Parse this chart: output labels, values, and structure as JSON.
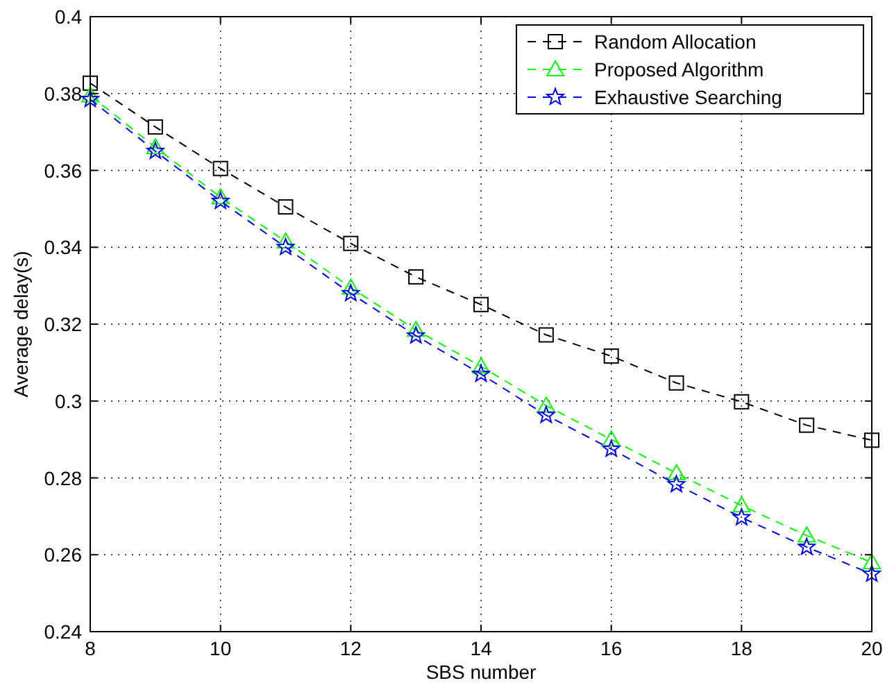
{
  "chart_data": {
    "type": "line",
    "xlabel": "SBS number",
    "ylabel": "Average delay(s)",
    "x": [
      8,
      9,
      10,
      11,
      12,
      13,
      14,
      15,
      16,
      17,
      18,
      19,
      20
    ],
    "series": [
      {
        "name": "Random Allocation",
        "color": "#000000",
        "marker": "square",
        "values": [
          0.3827,
          0.3713,
          0.3605,
          0.3505,
          0.341,
          0.3323,
          0.3251,
          0.3172,
          0.3117,
          0.3047,
          0.2998,
          0.2937,
          0.2898
        ]
      },
      {
        "name": "Proposed Algorithm",
        "color": "#00ff00",
        "marker": "triangle",
        "values": [
          0.3795,
          0.366,
          0.353,
          0.3415,
          0.3295,
          0.3185,
          0.309,
          0.2988,
          0.29,
          0.2812,
          0.2728,
          0.265,
          0.258
        ]
      },
      {
        "name": "Exhaustive Searching",
        "color": "#0000ff",
        "marker": "star",
        "values": [
          0.3785,
          0.365,
          0.352,
          0.34,
          0.328,
          0.317,
          0.307,
          0.2963,
          0.2875,
          0.2783,
          0.2697,
          0.262,
          0.255
        ]
      }
    ],
    "xlim": [
      8,
      20
    ],
    "xticks": [
      8,
      10,
      12,
      14,
      16,
      18,
      20
    ],
    "ylim": [
      0.24,
      0.4
    ],
    "yticks": [
      0.24,
      0.26,
      0.28,
      0.3,
      0.32,
      0.34,
      0.36,
      0.38,
      0.4
    ],
    "grid": true,
    "legend": "top right",
    "line_style": "dashed"
  }
}
